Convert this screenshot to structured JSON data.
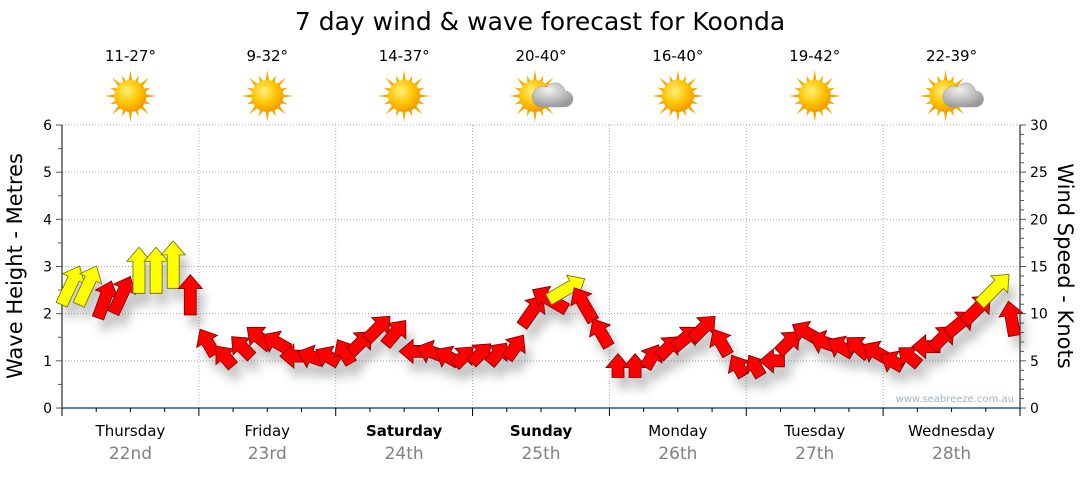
{
  "chart_data": {
    "type": "scatter",
    "title": "7 day wind & wave forecast for Koonda",
    "ylabel": "Wave Height - Metres",
    "y2label": "Wind Speed - Knots",
    "ylim": [
      0,
      6
    ],
    "y2lim": [
      0,
      30
    ],
    "yticks": [
      "0",
      "1",
      "2",
      "3",
      "4",
      "5",
      "6"
    ],
    "y2ticks": [
      "0",
      "5",
      "10",
      "15",
      "20",
      "25",
      "30"
    ],
    "grid": true,
    "watermark": "www.seabreeze.com.au",
    "days": [
      {
        "name": "Thursday",
        "date": "22nd",
        "temp": "11-27°",
        "icon": "sunny",
        "bold": false
      },
      {
        "name": "Friday",
        "date": "23rd",
        "temp": "9-32°",
        "icon": "sunny",
        "bold": false
      },
      {
        "name": "Saturday",
        "date": "24th",
        "temp": "14-37°",
        "icon": "sunny",
        "bold": true
      },
      {
        "name": "Sunday",
        "date": "25th",
        "temp": "20-40°",
        "icon": "partly-cloudy",
        "bold": true
      },
      {
        "name": "Monday",
        "date": "26th",
        "temp": "16-40°",
        "icon": "sunny",
        "bold": false
      },
      {
        "name": "Tuesday",
        "date": "27th",
        "temp": "19-42°",
        "icon": "sunny",
        "bold": false
      },
      {
        "name": "Wednesday",
        "date": "28th",
        "temp": "22-39°",
        "icon": "partly-cloudy",
        "bold": false
      }
    ],
    "wind_interval_hours": 3,
    "wind_speed_knots": [
      13,
      13,
      11.5,
      12,
      14.6,
      14.6,
      15.2,
      12,
      7,
      5.5,
      6.5,
      7.5,
      7,
      5.5,
      5.5,
      5.5,
      6,
      7,
      8.5,
      8,
      6,
      6,
      5.5,
      5.5,
      5.8,
      5.8,
      6.5,
      10.3,
      11.5,
      12.6,
      11,
      8,
      4.5,
      4.5,
      5.5,
      6.5,
      7.5,
      8.5,
      7,
      4.5,
      4.5,
      5,
      7,
      8,
      7,
      6.5,
      6.5,
      6,
      5,
      5.5,
      6.5,
      7.5,
      9,
      10.5,
      12.6,
      9.5
    ],
    "wind_heading_deg": [
      25,
      25,
      20,
      25,
      0,
      0,
      0,
      0,
      330,
      320,
      315,
      310,
      300,
      270,
      290,
      300,
      330,
      45,
      45,
      40,
      270,
      290,
      300,
      45,
      45,
      40,
      35,
      35,
      300,
      60,
      330,
      330,
      0,
      0,
      30,
      45,
      50,
      45,
      330,
      330,
      330,
      270,
      45,
      300,
      290,
      300,
      310,
      300,
      300,
      310,
      270,
      45,
      50,
      45,
      45,
      350
    ],
    "strong_threshold_knots": 12.5,
    "colors": {
      "strong": "#ffff00",
      "normal": "#ff0000",
      "axis": "#1f5f8b",
      "date": "#808080"
    }
  }
}
